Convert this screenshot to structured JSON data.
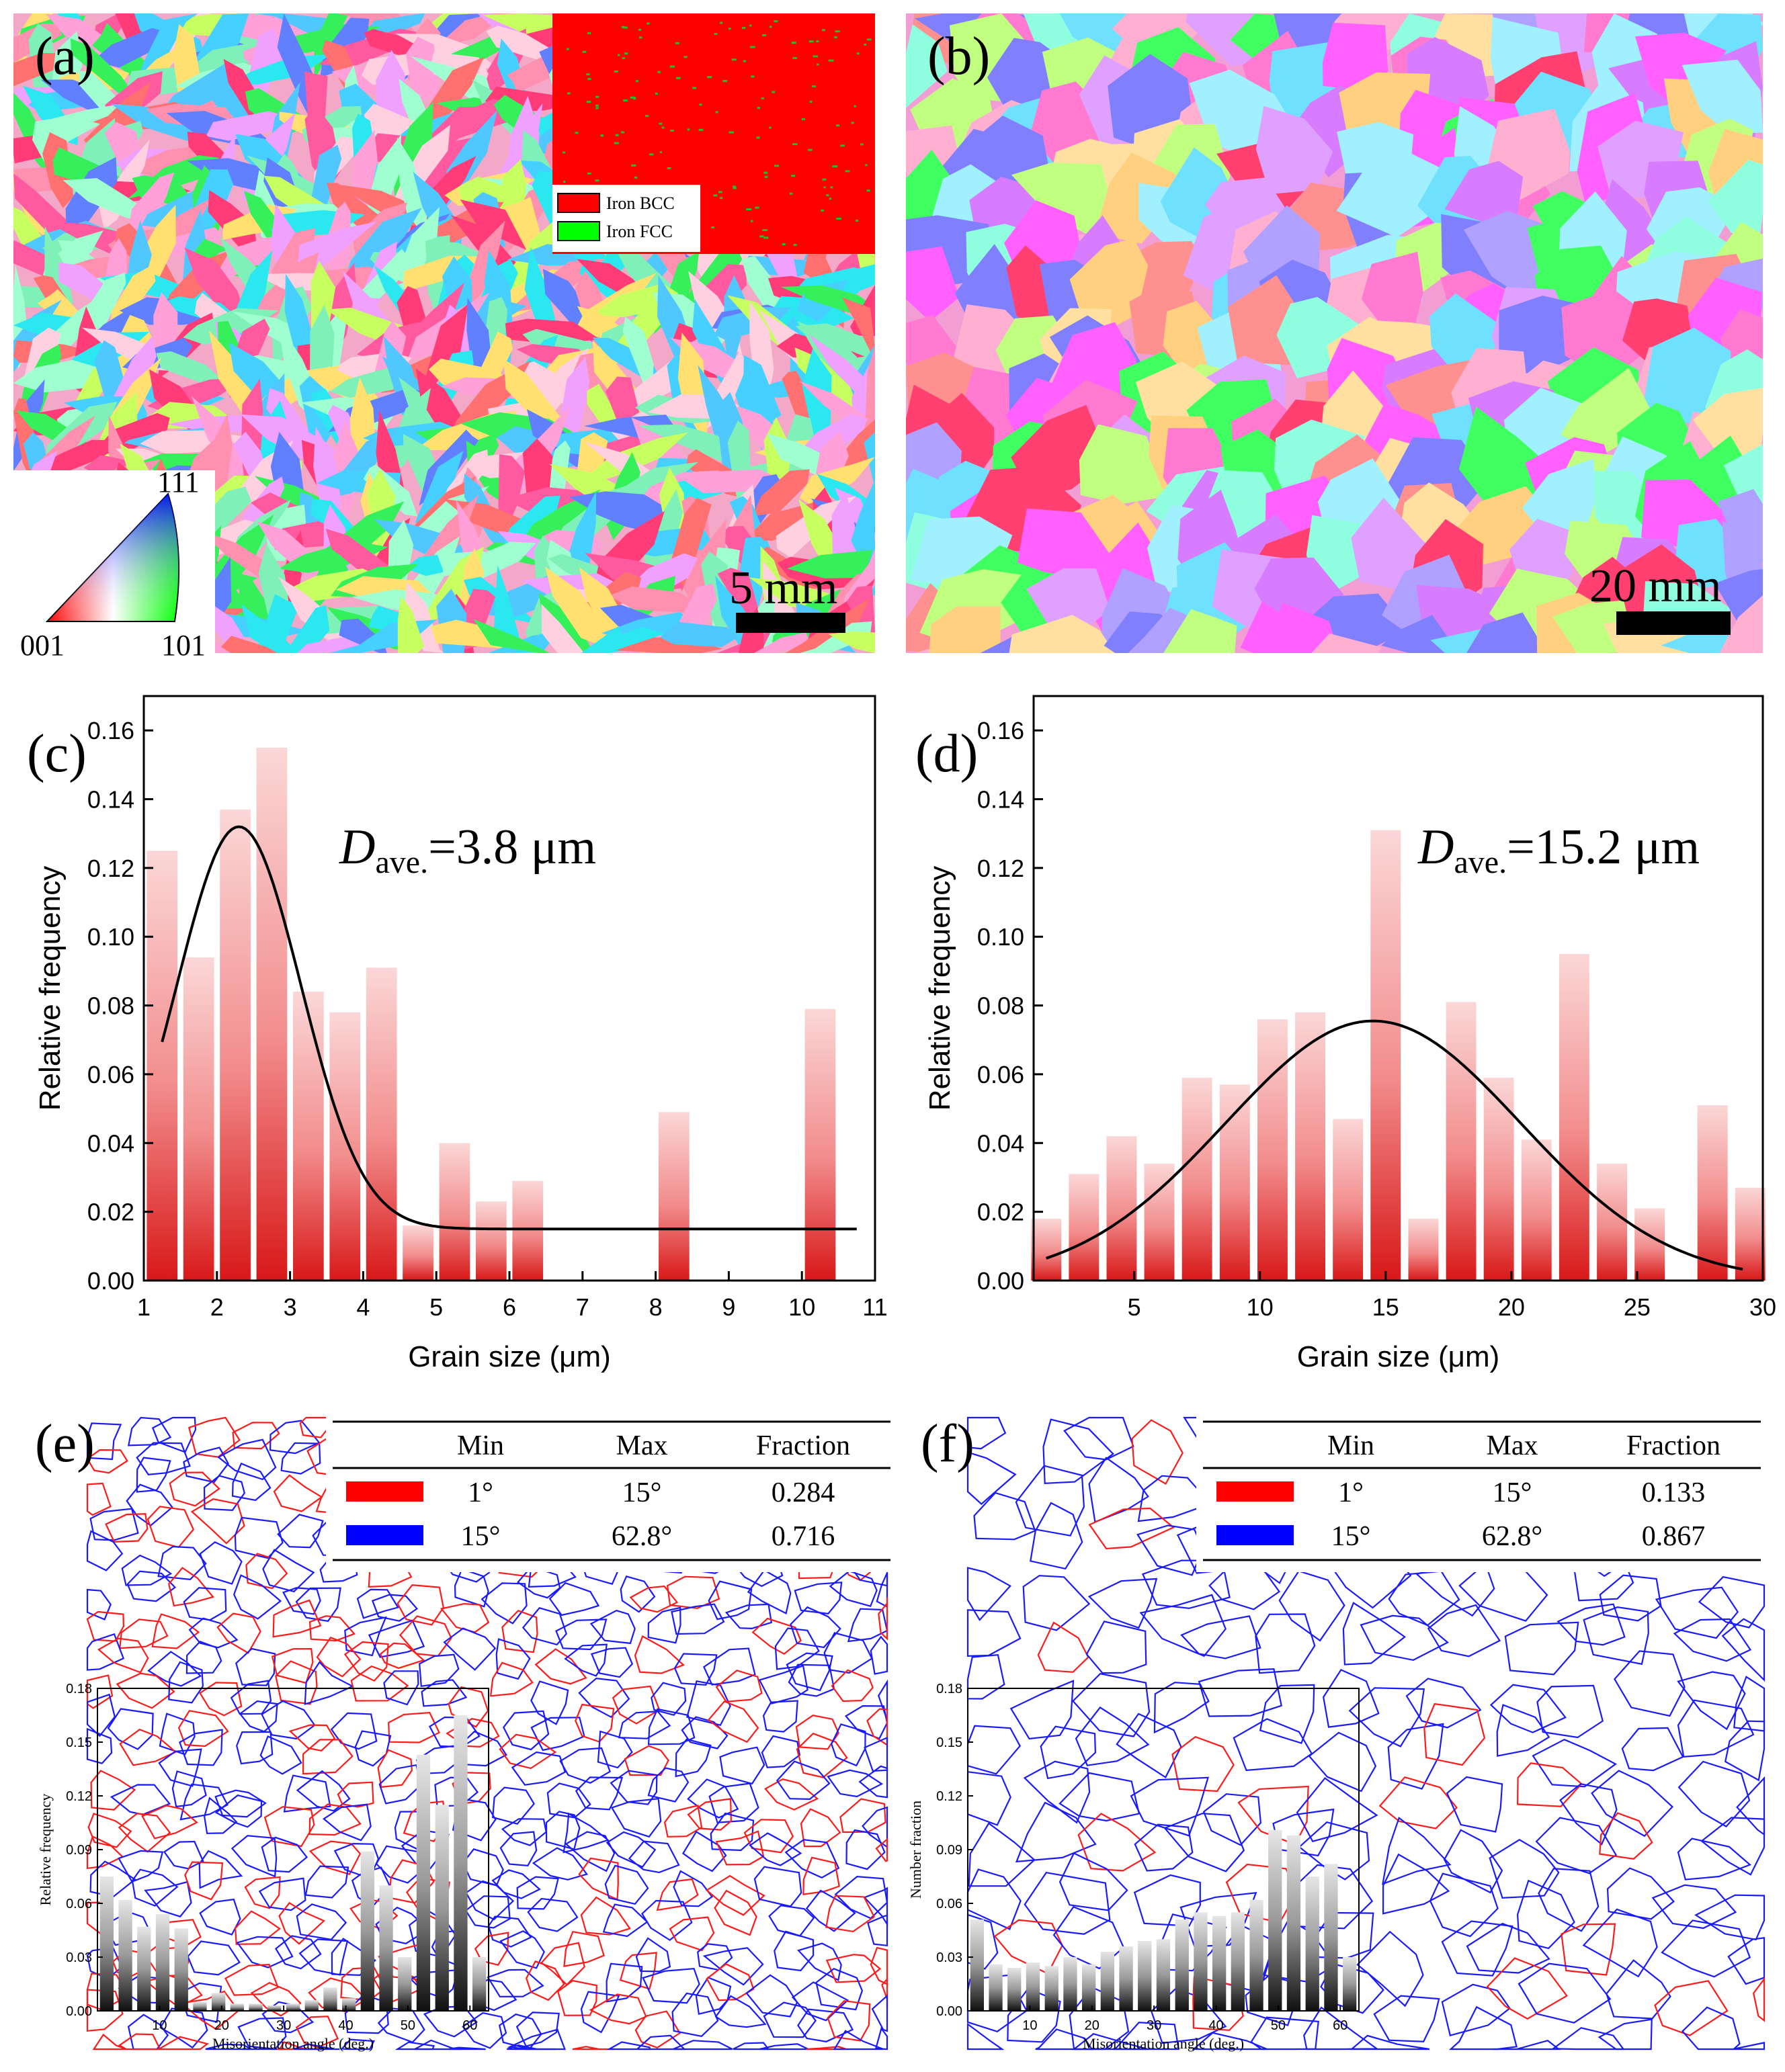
{
  "panels": {
    "a": {
      "label": "(a)",
      "scale_bar": "5 mm",
      "legend": [
        {
          "label": "Iron BCC",
          "color": "#ff0000"
        },
        {
          "label": "Iron FCC",
          "color": "#00ff00"
        }
      ],
      "ipf_key": {
        "top": "111",
        "left": "001",
        "right": "101"
      }
    },
    "b": {
      "label": "(b)",
      "scale_bar": "20 mm"
    },
    "c": {
      "label": "(c)",
      "annotation_main": "D",
      "annotation_sub": "ave.",
      "annotation_rest": "=3.8 μm"
    },
    "d": {
      "label": "(d)",
      "annotation_main": "D",
      "annotation_sub": "ave.",
      "annotation_rest": "=15.2 μm"
    },
    "e": {
      "label": "(e)",
      "table": {
        "headers": [
          "Min",
          "Max",
          "Fraction"
        ],
        "rows": [
          {
            "color": "#ff0000",
            "min": "1°",
            "max": "15°",
            "fraction": "0.284"
          },
          {
            "color": "#0000ff",
            "min": "15°",
            "max": "62.8°",
            "fraction": "0.716"
          }
        ]
      }
    },
    "f": {
      "label": "(f)",
      "table": {
        "headers": [
          "Min",
          "Max",
          "Fraction"
        ],
        "rows": [
          {
            "color": "#ff0000",
            "min": "1°",
            "max": "15°",
            "fraction": "0.133"
          },
          {
            "color": "#0000ff",
            "min": "15°",
            "max": "62.8°",
            "fraction": "0.867"
          }
        ]
      }
    }
  },
  "chart_data": [
    {
      "id": "c",
      "type": "bar",
      "title": "",
      "xlabel": "Grain size (μm)",
      "ylabel": "Relative frequency",
      "xlim": [
        1,
        11
      ],
      "ylim": [
        0,
        0.17
      ],
      "xticks": [
        1,
        2,
        3,
        4,
        5,
        6,
        7,
        8,
        9,
        10,
        11
      ],
      "yticks": [
        "0.00",
        "0.02",
        "0.04",
        "0.06",
        "0.08",
        "0.10",
        "0.12",
        "0.14",
        "0.16"
      ],
      "x": [
        1.25,
        1.75,
        2.25,
        2.75,
        3.25,
        3.75,
        4.25,
        4.75,
        5.25,
        5.75,
        6.25,
        8.25,
        10.25
      ],
      "values": [
        0.125,
        0.094,
        0.137,
        0.155,
        0.084,
        0.078,
        0.091,
        0.016,
        0.04,
        0.023,
        0.029,
        0.049,
        0.079
      ],
      "fit": {
        "type": "gaussian",
        "baseline": 0.015,
        "amplitude": 0.117,
        "center": 2.3,
        "width": 1.2,
        "x_range": [
          1.25,
          10.75
        ]
      }
    },
    {
      "id": "d",
      "type": "bar",
      "title": "",
      "xlabel": "Grain size (μm)",
      "ylabel": "Relative frequency",
      "xlim": [
        1,
        30
      ],
      "ylim": [
        0,
        0.17
      ],
      "xticks": [
        5,
        10,
        15,
        20,
        25,
        30
      ],
      "yticks": [
        "0.00",
        "0.02",
        "0.04",
        "0.06",
        "0.08",
        "0.10",
        "0.12",
        "0.14",
        "0.16"
      ],
      "x": [
        1.5,
        3,
        4.5,
        6,
        7.5,
        9,
        10.5,
        12,
        13.5,
        15,
        16.5,
        18,
        19.5,
        21,
        22.5,
        24,
        25.5,
        28,
        29.5
      ],
      "values": [
        0.018,
        0.031,
        0.042,
        0.034,
        0.059,
        0.057,
        0.076,
        0.078,
        0.047,
        0.131,
        0.018,
        0.081,
        0.059,
        0.041,
        0.095,
        0.034,
        0.021,
        0.051,
        0.027
      ],
      "fit": {
        "type": "gaussian",
        "baseline": 0.0,
        "amplitude": 0.0755,
        "center": 14.5,
        "width": 8.3,
        "x_range": [
          1.5,
          29.2
        ]
      }
    },
    {
      "id": "e-inset",
      "type": "bar",
      "title": "",
      "xlabel": "Misorientation angle (deg.)",
      "ylabel": "Relative frequency",
      "xlim": [
        0,
        63
      ],
      "ylim": [
        0,
        0.18
      ],
      "xticks": [
        10,
        20,
        30,
        40,
        50,
        60
      ],
      "yticks": [
        "0.00",
        "0.03",
        "0.06",
        "0.09",
        "0.12",
        "0.15",
        "0.18"
      ],
      "x": [
        1.5,
        4.5,
        7.5,
        10.5,
        13.5,
        16.5,
        19.5,
        22.5,
        25.5,
        28.5,
        31.5,
        34.5,
        37.5,
        40.5,
        43.5,
        46.5,
        49.5,
        52.5,
        55.5,
        58.5,
        61.5
      ],
      "values": [
        0.075,
        0.062,
        0.047,
        0.054,
        0.046,
        0.005,
        0.01,
        0.004,
        0.004,
        0.003,
        0.004,
        0.006,
        0.013,
        0.007,
        0.089,
        0.07,
        0.03,
        0.143,
        0.115,
        0.165,
        0.03
      ]
    },
    {
      "id": "f-inset",
      "type": "bar",
      "title": "",
      "xlabel": "Misorientation angle (deg.)",
      "ylabel": "Number fraction",
      "xlim": [
        0,
        63
      ],
      "ylim": [
        0,
        0.18
      ],
      "xticks": [
        10,
        20,
        30,
        40,
        50,
        60
      ],
      "yticks": [
        "0.00",
        "0.03",
        "0.06",
        "0.09",
        "0.12",
        "0.15",
        "0.18"
      ],
      "x": [
        1.5,
        4.5,
        7.5,
        10.5,
        13.5,
        16.5,
        19.5,
        22.5,
        25.5,
        28.5,
        31.5,
        34.5,
        37.5,
        40.5,
        43.5,
        46.5,
        49.5,
        52.5,
        55.5,
        58.5,
        61.5
      ],
      "values": [
        0.051,
        0.026,
        0.024,
        0.027,
        0.025,
        0.03,
        0.026,
        0.033,
        0.036,
        0.039,
        0.04,
        0.051,
        0.055,
        0.053,
        0.055,
        0.062,
        0.101,
        0.098,
        0.075,
        0.082,
        0.03
      ]
    }
  ]
}
